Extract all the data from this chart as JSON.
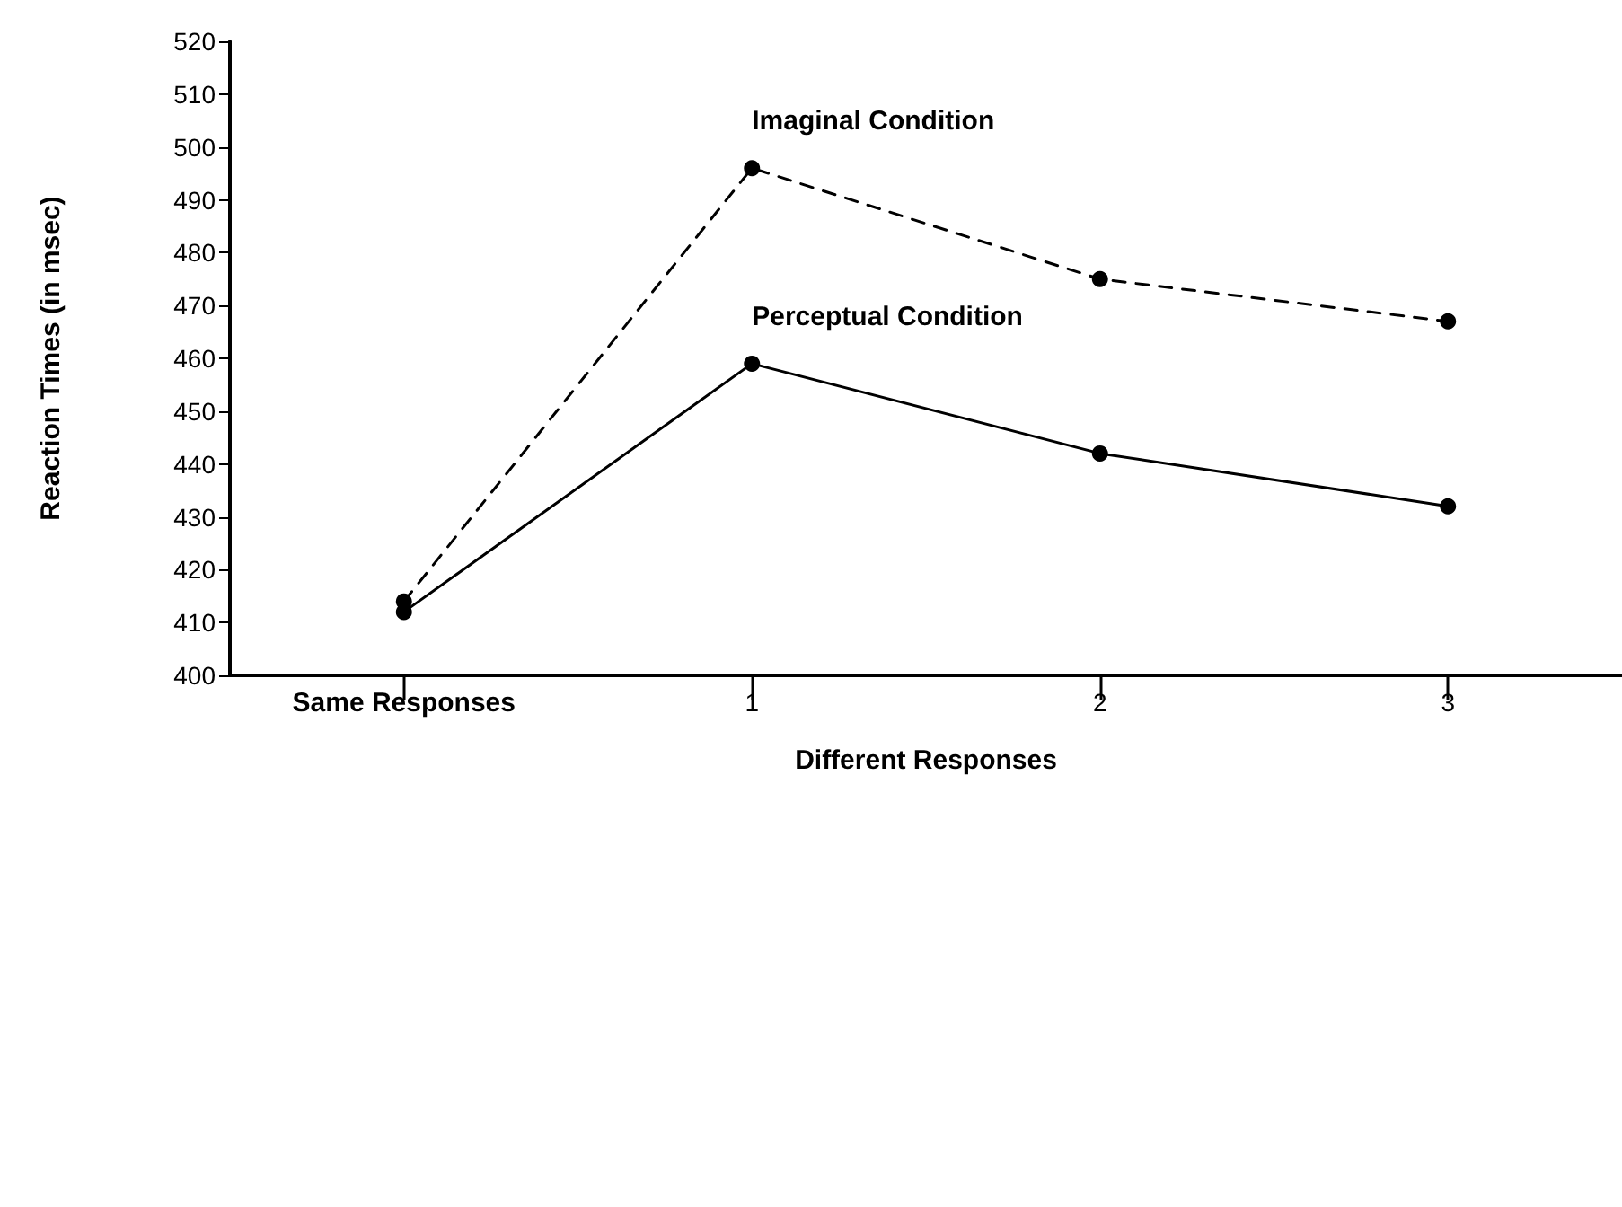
{
  "chart_data": {
    "type": "line",
    "xlabel": "Different Responses",
    "ylabel": "Reaction Times (in msec)",
    "categories": [
      "Same Responses",
      "1",
      "2",
      "3"
    ],
    "series": [
      {
        "name": "Imaginal Condition",
        "color": "#000000",
        "values": [
          414,
          496,
          475,
          467
        ],
        "line_style": "dashed"
      },
      {
        "name": "Perceptual Condition",
        "color": "#000000",
        "values": [
          412,
          459,
          442,
          432
        ],
        "line_style": "solid"
      }
    ],
    "ylim": [
      400,
      520
    ],
    "yticks": [
      400,
      410,
      420,
      430,
      440,
      450,
      460,
      470,
      480,
      490,
      500,
      510,
      520
    ],
    "grid": false,
    "legend": false,
    "marker": "circle"
  }
}
